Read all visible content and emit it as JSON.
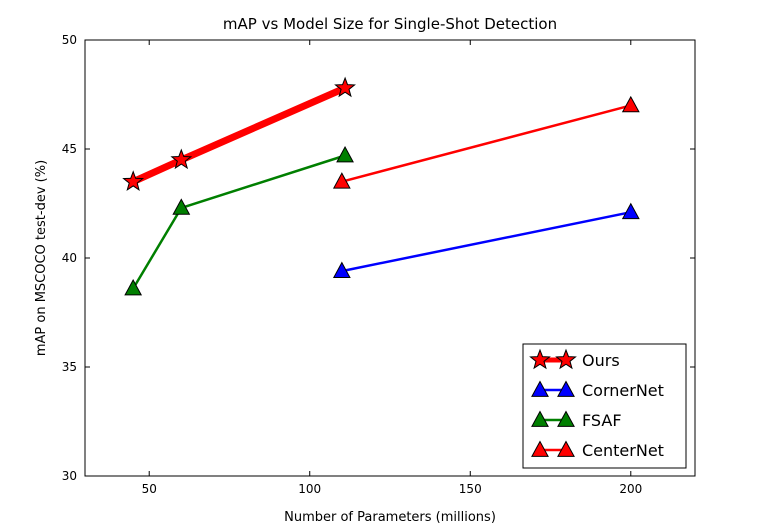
{
  "chart_data": {
    "type": "line",
    "title": "mAP vs Model Size for Single-Shot Detection",
    "xlabel": "Number of Parameters (millions)",
    "ylabel": "mAP on MSCOCO test-dev (%)",
    "xlim": [
      30,
      220
    ],
    "ylim": [
      30,
      50
    ],
    "xticks": [
      50,
      100,
      150,
      200
    ],
    "yticks": [
      30,
      35,
      40,
      45,
      50
    ],
    "grid": false,
    "legend_position": "lower-right",
    "series": [
      {
        "name": "Ours",
        "color": "#ff0000",
        "marker": "star",
        "emphasis": true,
        "x": [
          45,
          60,
          111
        ],
        "y": [
          43.5,
          44.5,
          47.8
        ]
      },
      {
        "name": "CornerNet",
        "color": "#0000ff",
        "marker": "triangle",
        "x": [
          110,
          200
        ],
        "y": [
          39.4,
          42.1
        ]
      },
      {
        "name": "FSAF",
        "color": "#007f00",
        "marker": "triangle",
        "x": [
          45,
          60,
          111
        ],
        "y": [
          38.6,
          42.3,
          44.7
        ]
      },
      {
        "name": "CenterNet",
        "color": "#ff0000",
        "marker": "triangle",
        "x": [
          110,
          200
        ],
        "y": [
          43.5,
          47.0
        ]
      }
    ]
  }
}
